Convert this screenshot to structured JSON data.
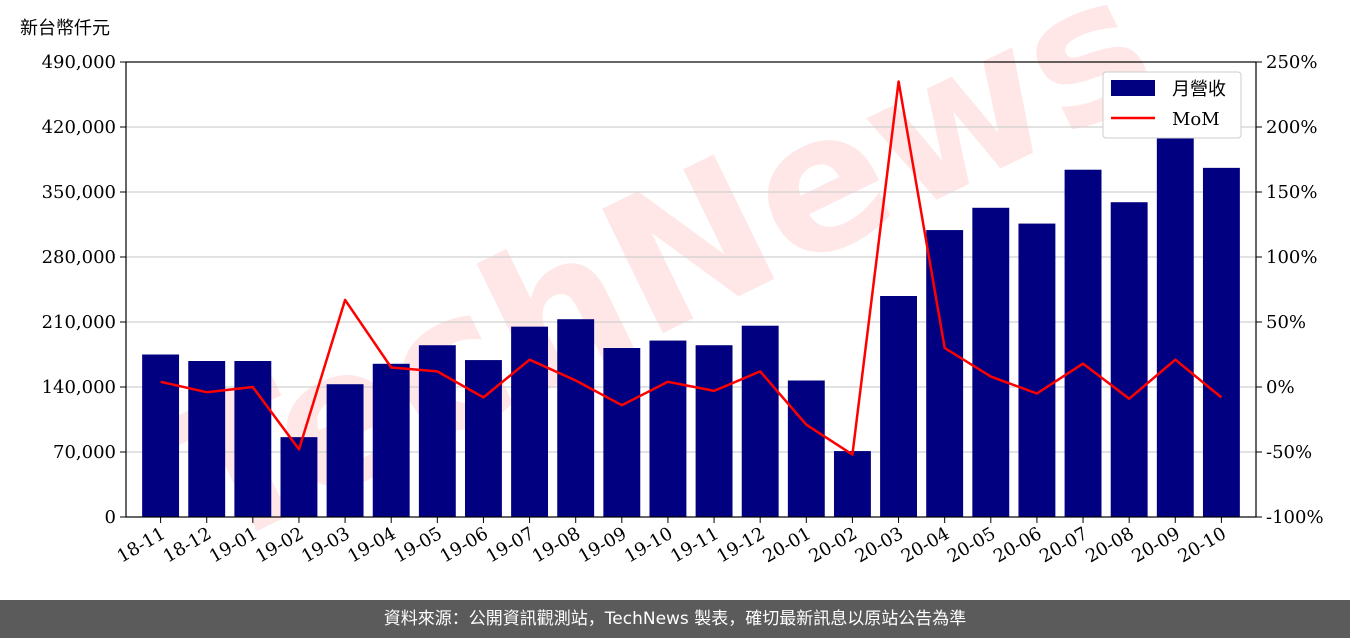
{
  "unit_label": "新台幣仟元",
  "footer": "資料來源：公開資訊觀測站，TechNews 製表，確切最新訊息以原站公告為準",
  "watermark": "TechNews",
  "colors": {
    "bar": "#000080",
    "line": "#ff0000",
    "grid": "#d0d0d0"
  },
  "chart_data": {
    "type": "bar",
    "categories": [
      "18-11",
      "18-12",
      "19-01",
      "19-02",
      "19-03",
      "19-04",
      "19-05",
      "19-06",
      "19-07",
      "19-08",
      "19-09",
      "19-10",
      "19-11",
      "19-12",
      "20-01",
      "20-02",
      "20-03",
      "20-04",
      "20-05",
      "20-06",
      "20-07",
      "20-08",
      "20-09",
      "20-10"
    ],
    "series": [
      {
        "name": "月營收",
        "type": "bar",
        "axis": "left",
        "values": [
          175000,
          168000,
          168000,
          86000,
          143000,
          165000,
          185000,
          169000,
          205000,
          213000,
          182000,
          190000,
          185000,
          206000,
          147000,
          71000,
          238000,
          309000,
          333000,
          316000,
          374000,
          339000,
          410000,
          376000
        ]
      },
      {
        "name": "MoM",
        "type": "line",
        "axis": "right",
        "values": [
          4,
          -4,
          0,
          -48,
          67,
          15,
          12,
          -8,
          21,
          5,
          -14,
          4,
          -3,
          12,
          -29,
          -52,
          235,
          30,
          8,
          -5,
          18,
          -9,
          21,
          -8
        ]
      }
    ],
    "y_left": {
      "ylim": [
        0,
        490000
      ],
      "ticks": [
        "0",
        "70,000",
        "140,000",
        "210,000",
        "280,000",
        "350,000",
        "420,000",
        "490,000"
      ]
    },
    "y_right": {
      "ylim": [
        -100,
        250
      ],
      "ticks": [
        "-100%",
        "-50%",
        "0%",
        "50%",
        "100%",
        "150%",
        "200%",
        "250%"
      ]
    },
    "grid": true,
    "legend": "top-right"
  }
}
